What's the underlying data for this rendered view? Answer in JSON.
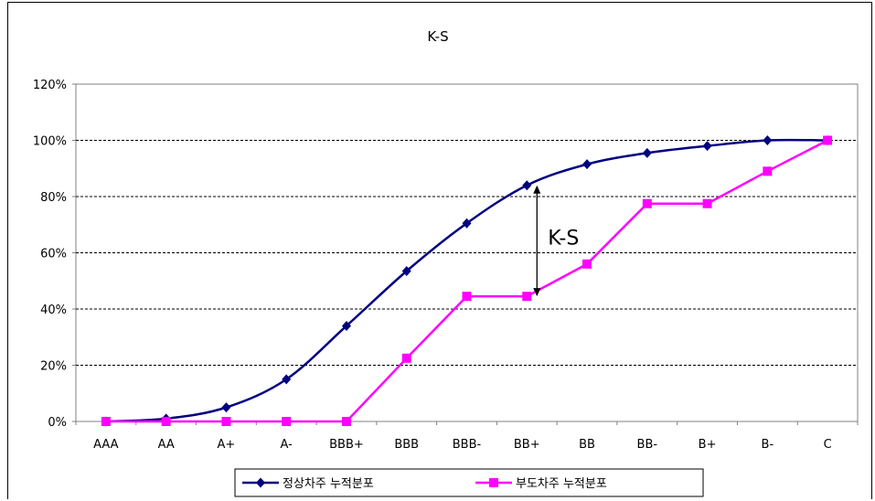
{
  "chart_data": {
    "type": "line",
    "title": "K-S",
    "categories": [
      "AAA",
      "AA",
      "A+",
      "A-",
      "BBB+",
      "BBB",
      "BBB-",
      "BB+",
      "BB",
      "BB-",
      "B+",
      "B-",
      "C"
    ],
    "ylim": [
      0,
      120
    ],
    "yticks": [
      "0%",
      "20%",
      "40%",
      "60%",
      "80%",
      "100%",
      "120%"
    ],
    "y_unit": "%",
    "grid": "dashed horizontal",
    "legend_position": "bottom",
    "series": [
      {
        "name": "정상차주 누적분포",
        "color": "#000080",
        "marker": "diamond",
        "values": [
          0,
          1,
          5,
          15,
          34,
          53.5,
          70.5,
          84,
          91.5,
          95.5,
          98,
          100,
          100
        ]
      },
      {
        "name": "부도차주 누적분포",
        "color": "#ff00ff",
        "marker": "square",
        "values": [
          0,
          0,
          0,
          0,
          0,
          22.5,
          44.5,
          44.5,
          56,
          77.5,
          77.5,
          89,
          100
        ]
      }
    ],
    "annotation": {
      "text": "K-S",
      "category": "BB+",
      "from": 84,
      "to": 44.5
    }
  }
}
